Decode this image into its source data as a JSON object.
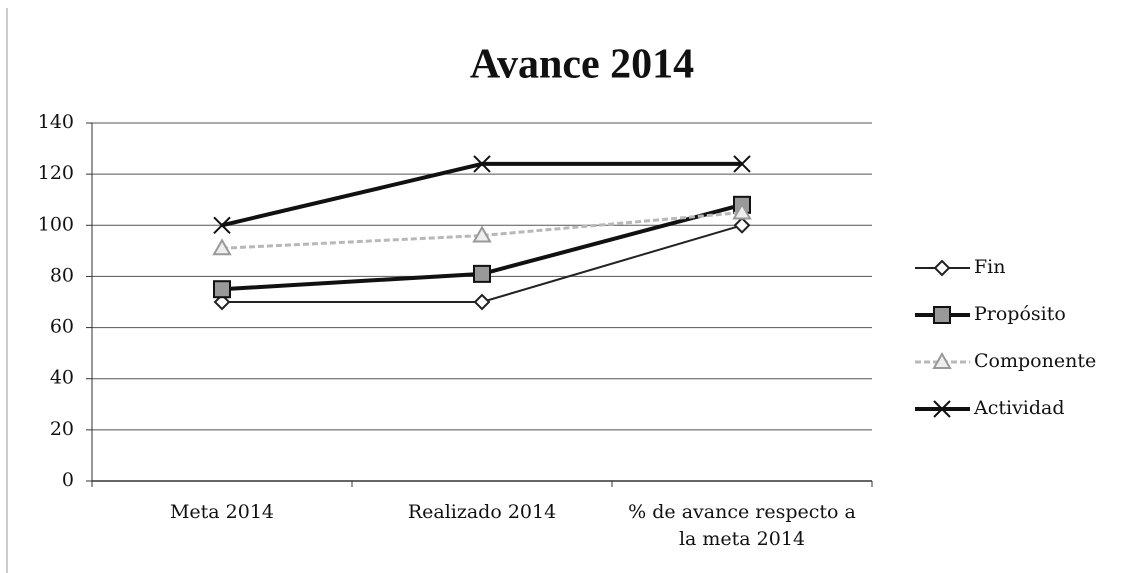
{
  "chart_data": {
    "type": "line",
    "title": "Avance 2014",
    "categories": [
      "Meta 2014",
      "Realizado 2014",
      "% de avance respecto a la meta 2014"
    ],
    "series": [
      {
        "name": "Fin",
        "color": "#222222",
        "marker": "diamond",
        "values": [
          70,
          70,
          100
        ]
      },
      {
        "name": "Propósito",
        "color": "#111111",
        "marker": "square",
        "values": [
          75,
          81,
          108
        ]
      },
      {
        "name": "Componente",
        "color": "#b8b8b8",
        "marker": "triangle",
        "values": [
          91,
          96,
          105
        ]
      },
      {
        "name": "Actividad",
        "color": "#111111",
        "marker": "x",
        "values": [
          100,
          124,
          124
        ]
      }
    ],
    "ylim": [
      0,
      140
    ],
    "yticks": [
      0,
      20,
      40,
      60,
      80,
      100,
      120,
      140
    ],
    "grid": true,
    "legend": "right"
  }
}
